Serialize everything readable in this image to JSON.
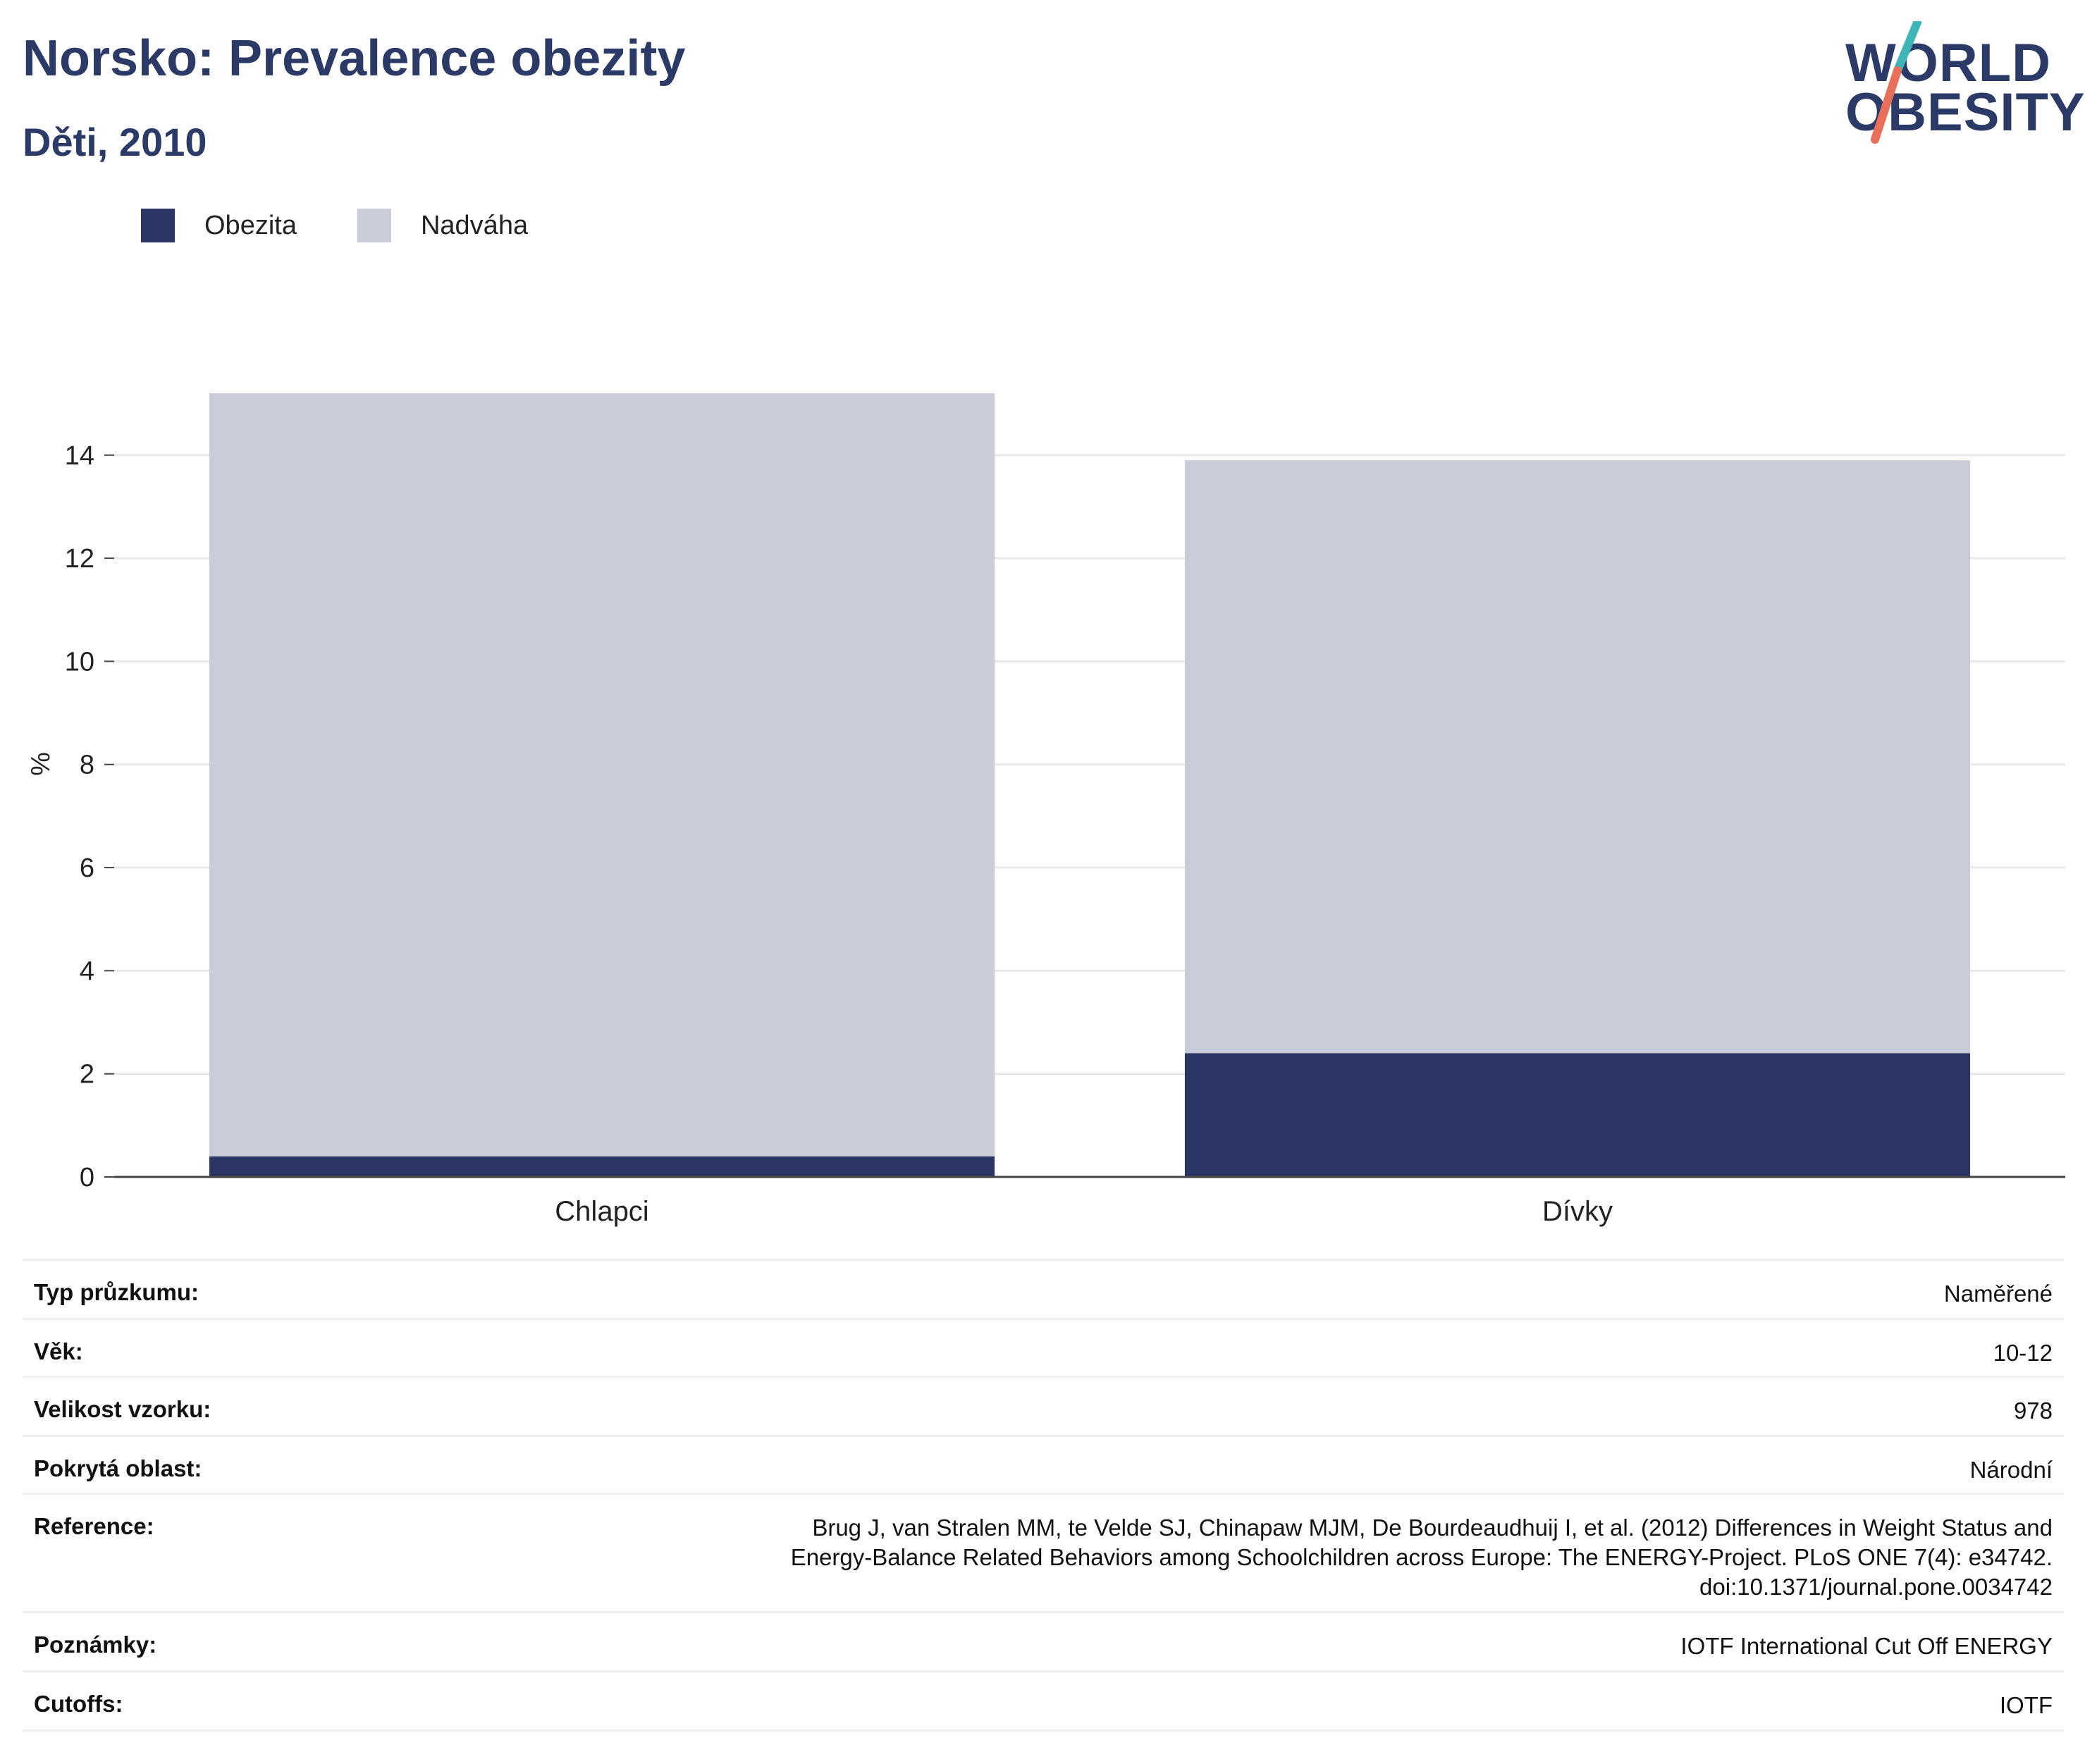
{
  "title": "Norsko: Prevalence obezity",
  "subtitle": "Děti, 2010",
  "logo": {
    "line1": "WORLD",
    "line2": "OBESITY"
  },
  "colors": {
    "obesity": "#2b3665",
    "overweight": "#cacdd9",
    "title": "#2b3a67",
    "logo_teal": "#3fb5b8",
    "logo_coral": "#e8705a"
  },
  "chart_data": {
    "type": "bar",
    "stacked": true,
    "categories": [
      "Chlapci",
      "Dívky"
    ],
    "series": [
      {
        "name": "Obezita",
        "values": [
          0.4,
          2.4
        ]
      },
      {
        "name": "Nadváha",
        "values": [
          14.8,
          11.5
        ]
      }
    ],
    "ylabel": "%",
    "xlabel": "",
    "ylim": [
      0,
      15.2
    ],
    "yticks": [
      "0",
      "2",
      "4",
      "6",
      "8",
      "10",
      "12",
      "14"
    ],
    "grid": true,
    "legend_position": "top-left"
  },
  "info": [
    {
      "key": "Typ průzkumu:",
      "value": "Naměřené"
    },
    {
      "key": "Věk:",
      "value": "10-12"
    },
    {
      "key": "Velikost vzorku:",
      "value": "978"
    },
    {
      "key": "Pokrytá oblast:",
      "value": "Národní"
    },
    {
      "key": "Reference:",
      "value": "Brug J, van Stralen MM, te Velde SJ, Chinapaw MJM, De Bourdeaudhuij I, et al. (2012) Differences in Weight Status and Energy-Balance Related Behaviors among Schoolchildren across Europe: The ENERGY-Project. PLoS ONE 7(4): e34742. doi:10.1371/journal.pone.0034742"
    },
    {
      "key": "Poznámky:",
      "value": "IOTF International Cut Off ENERGY"
    },
    {
      "key": "Cutoffs:",
      "value": "IOTF"
    }
  ]
}
